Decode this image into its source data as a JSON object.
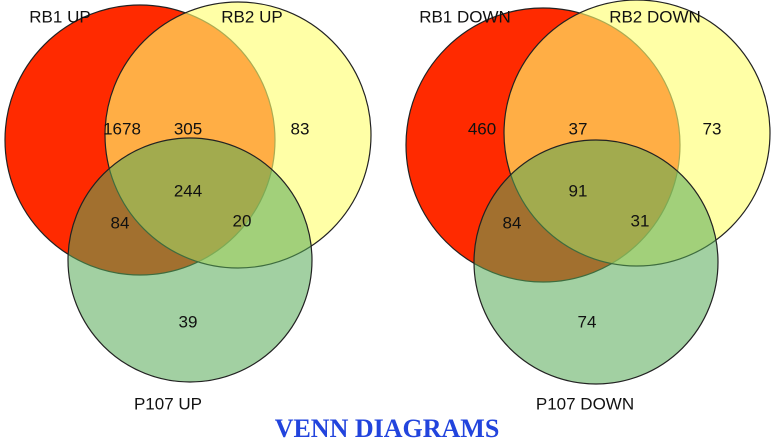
{
  "title": "VENN DIAGRAMS",
  "chart_data": [
    {
      "type": "venn",
      "series": [
        {
          "name": "RB1 UP",
          "color": "#ff2a00"
        },
        {
          "name": "RB2 UP",
          "color": "#ffff70"
        },
        {
          "name": "P107 UP",
          "color": "#55aa55"
        }
      ],
      "values": [
        1678,
        83,
        305,
        39,
        84,
        20,
        244
      ]
    },
    {
      "type": "venn",
      "series": [
        {
          "name": "RB1 DOWN",
          "color": "#ff2a00"
        },
        {
          "name": "RB2 DOWN",
          "color": "#ffff70"
        },
        {
          "name": "P107 DOWN",
          "color": "#55aa55"
        }
      ],
      "values": [
        460,
        73,
        37,
        74,
        84,
        31,
        91
      ]
    }
  ]
}
